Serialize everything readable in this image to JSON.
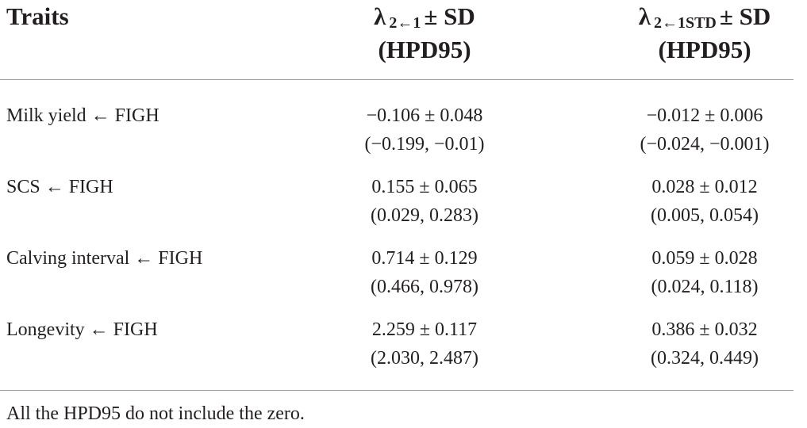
{
  "table": {
    "columns": [
      {
        "label": "Traits"
      },
      {
        "symbol": "λ",
        "subscript": "2←1",
        "suffix": "± SD",
        "second_line": "(HPD95)"
      },
      {
        "symbol": "λ",
        "subscript": "2←1STD",
        "suffix": "± SD",
        "second_line": "(HPD95)"
      }
    ],
    "rows": [
      {
        "trait": "Milk yield ← FIGH",
        "values": [
          {
            "estimate": "−0.106 ± 0.048",
            "interval": "(−0.199, −0.01)"
          },
          {
            "estimate": "−0.012 ± 0.006",
            "interval": "(−0.024, −0.001)"
          }
        ]
      },
      {
        "trait": "SCS ← FIGH",
        "values": [
          {
            "estimate": "0.155 ± 0.065",
            "interval": "(0.029, 0.283)"
          },
          {
            "estimate": "0.028 ± 0.012",
            "interval": "(0.005, 0.054)"
          }
        ]
      },
      {
        "trait": "Calving interval ← FIGH",
        "values": [
          {
            "estimate": "0.714 ± 0.129",
            "interval": "(0.466, 0.978)"
          },
          {
            "estimate": "0.059 ± 0.028",
            "interval": "(0.024, 0.118)"
          }
        ]
      },
      {
        "trait": "Longevity ← FIGH",
        "values": [
          {
            "estimate": "2.259 ± 0.117",
            "interval": "(2.030, 2.487)"
          },
          {
            "estimate": "0.386 ± 0.032",
            "interval": "(0.324, 0.449)"
          }
        ]
      }
    ],
    "footnote": "All the HPD95 do not include the zero."
  }
}
